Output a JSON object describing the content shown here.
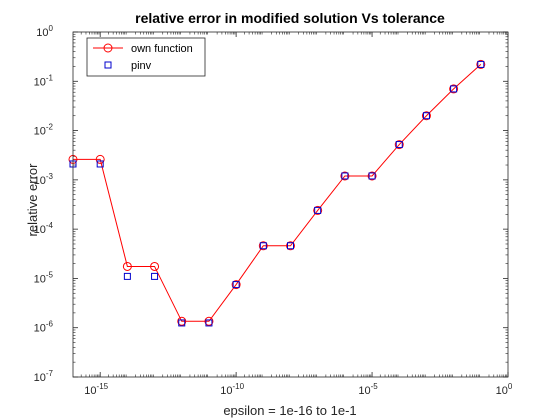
{
  "chart_data": {
    "type": "line",
    "title": "relative error in modified solution Vs tolerance",
    "xlabel": "epsilon = 1e-16 to 1e-1",
    "ylabel": "relative error",
    "xscale": "log",
    "yscale": "log",
    "xlim": [
      1e-16,
      1
    ],
    "ylim": [
      1e-07,
      1
    ],
    "x_ticks": [
      {
        "value": 1e-15,
        "base": "10",
        "exp": "-15"
      },
      {
        "value": 1e-10,
        "base": "10",
        "exp": "-10"
      },
      {
        "value": 1e-05,
        "base": "10",
        "exp": "-5"
      },
      {
        "value": 1,
        "base": "10",
        "exp": "0"
      }
    ],
    "y_ticks": [
      {
        "value": 1e-07,
        "base": "10",
        "exp": "-7"
      },
      {
        "value": 1e-06,
        "base": "10",
        "exp": "-6"
      },
      {
        "value": 1e-05,
        "base": "10",
        "exp": "-5"
      },
      {
        "value": 0.0001,
        "base": "10",
        "exp": "-4"
      },
      {
        "value": 0.001,
        "base": "10",
        "exp": "-3"
      },
      {
        "value": 0.01,
        "base": "10",
        "exp": "-2"
      },
      {
        "value": 0.1,
        "base": "10",
        "exp": "-1"
      },
      {
        "value": 1,
        "base": "10",
        "exp": "0"
      }
    ],
    "grid": false,
    "legend_position": "top-left",
    "x": [
      1e-16,
      1e-15,
      1e-14,
      1e-13,
      1e-12,
      1e-11,
      1e-10,
      1e-09,
      1e-08,
      1e-07,
      1e-06,
      1e-05,
      0.0001,
      0.001,
      0.01,
      0.1
    ],
    "series": [
      {
        "name": "own function",
        "marker": "circle",
        "line": true,
        "color": "#ff0000",
        "values": [
          0.0026,
          0.0026,
          1.75e-05,
          1.75e-05,
          1.35e-06,
          1.35e-06,
          7.5e-06,
          4.6e-05,
          4.6e-05,
          0.00024,
          0.0012,
          0.0012,
          0.0052,
          0.02,
          0.07,
          0.22
        ]
      },
      {
        "name": "pinv",
        "marker": "square",
        "line": false,
        "color": "#0000cc",
        "values": [
          0.0021,
          0.0021,
          1.1e-05,
          1.1e-05,
          1.25e-06,
          1.25e-06,
          7.5e-06,
          4.6e-05,
          4.6e-05,
          0.00024,
          0.0012,
          0.0012,
          0.0052,
          0.02,
          0.07,
          0.22
        ]
      }
    ]
  }
}
